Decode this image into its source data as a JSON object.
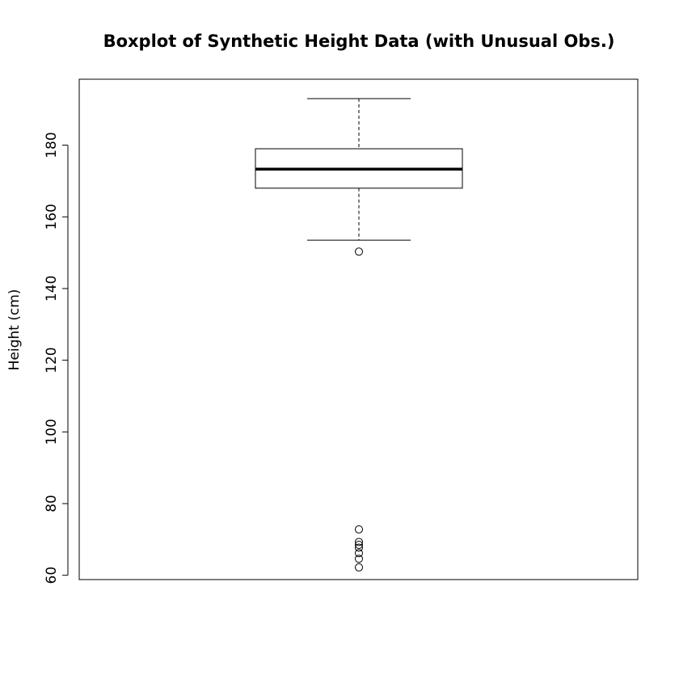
{
  "chart_data": {
    "type": "boxplot",
    "title": "Boxplot of Synthetic Height Data (with Unusual Obs.)",
    "xlabel": "",
    "ylabel": "Height (cm)",
    "ylim": [
      58.8,
      198.4
    ],
    "yticks": [
      60,
      80,
      100,
      120,
      140,
      160,
      180
    ],
    "grid": false,
    "legend": "none",
    "box": {
      "whisker_low": 153.5,
      "q1": 168,
      "median": 173.3,
      "q3": 179,
      "whisker_high": 193
    },
    "outliers": [
      150.3,
      72.8,
      69.3,
      68.5,
      67.7,
      66.2,
      64.6,
      62.2
    ]
  },
  "colors": {
    "stroke": "#000000",
    "background": "#ffffff"
  }
}
